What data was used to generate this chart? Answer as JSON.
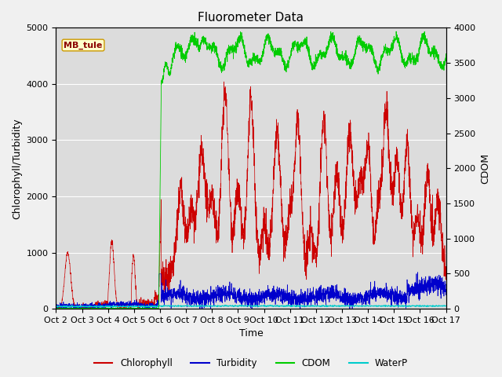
{
  "title": "Fluorometer Data",
  "xlabel": "Time",
  "ylabel_left": "Chlorophyll/Turbidity",
  "ylabel_right": "CDOM",
  "ylim_left": [
    0,
    5000
  ],
  "ylim_right": [
    0,
    4000
  ],
  "xlim": [
    0,
    15
  ],
  "xtick_labels": [
    "Oct 2",
    "Oct 3",
    "Oct 4",
    "Oct 5",
    "Oct 6",
    "Oct 7",
    "Oct 8",
    "Oct 9",
    "Oct 10",
    "Oct 11",
    "Oct 12",
    "Oct 13",
    "Oct 14",
    "Oct 15",
    "Oct 16",
    "Oct 17"
  ],
  "legend_labels": [
    "Chlorophyll",
    "Turbidity",
    "CDOM",
    "WaterP"
  ],
  "legend_colors": [
    "#cc0000",
    "#0000cc",
    "#00cc00",
    "#00cccc"
  ],
  "annotation_text": "MB_tule",
  "background_color": "#dcdcdc",
  "grid_color": "#ffffff",
  "chlorophyll_color": "#cc0000",
  "turbidity_color": "#0000cc",
  "cdom_color": "#00cc00",
  "waterp_color": "#00cccc",
  "title_fontsize": 11,
  "axis_label_fontsize": 9,
  "tick_fontsize": 8
}
